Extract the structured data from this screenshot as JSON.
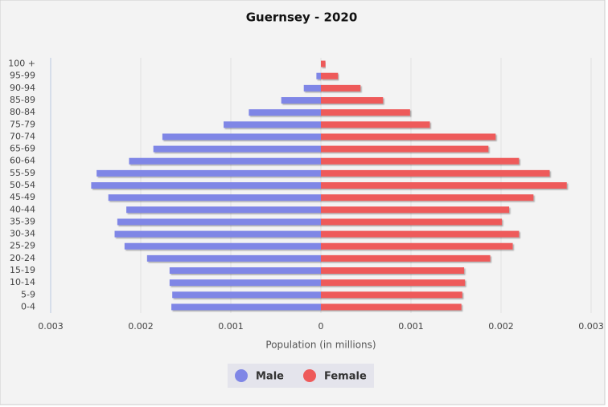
{
  "chart_data": {
    "type": "pyramid",
    "title": "Guernsey - 2020",
    "x_label": "Population (in millions)",
    "categories": [
      "100 +",
      "95-99",
      "90-94",
      "85-89",
      "80-84",
      "75-79",
      "70-74",
      "65-69",
      "60-64",
      "55-59",
      "50-54",
      "45-49",
      "40-44",
      "35-39",
      "30-34",
      "25-29",
      "20-24",
      "15-19",
      "10-14",
      "5-9",
      "0-4"
    ],
    "series": [
      {
        "name": "Male",
        "color": "#7f86e6",
        "values": [
          0,
          -5e-05,
          -0.00019,
          -0.00044,
          -0.0008,
          -0.00108,
          -0.00176,
          -0.00186,
          -0.00213,
          -0.00249,
          -0.00255,
          -0.00236,
          -0.00216,
          -0.00226,
          -0.00229,
          -0.00218,
          -0.00193,
          -0.00168,
          -0.00168,
          -0.00165,
          -0.00166
        ]
      },
      {
        "name": "Female",
        "color": "#ee5a5a",
        "values": [
          5e-05,
          0.00019,
          0.00044,
          0.00069,
          0.00099,
          0.00121,
          0.00194,
          0.00186,
          0.0022,
          0.00254,
          0.00273,
          0.00236,
          0.00209,
          0.00201,
          0.0022,
          0.00213,
          0.00188,
          0.00159,
          0.0016,
          0.00157,
          0.00156
        ]
      }
    ],
    "xlim": [
      -0.003,
      0.003
    ],
    "xticks": [
      {
        "value": -0.003,
        "label": "0.003"
      },
      {
        "value": -0.002,
        "label": "0.002"
      },
      {
        "value": -0.001,
        "label": "0.001"
      },
      0,
      0.001,
      0.002,
      0.003
    ],
    "grid": true
  }
}
